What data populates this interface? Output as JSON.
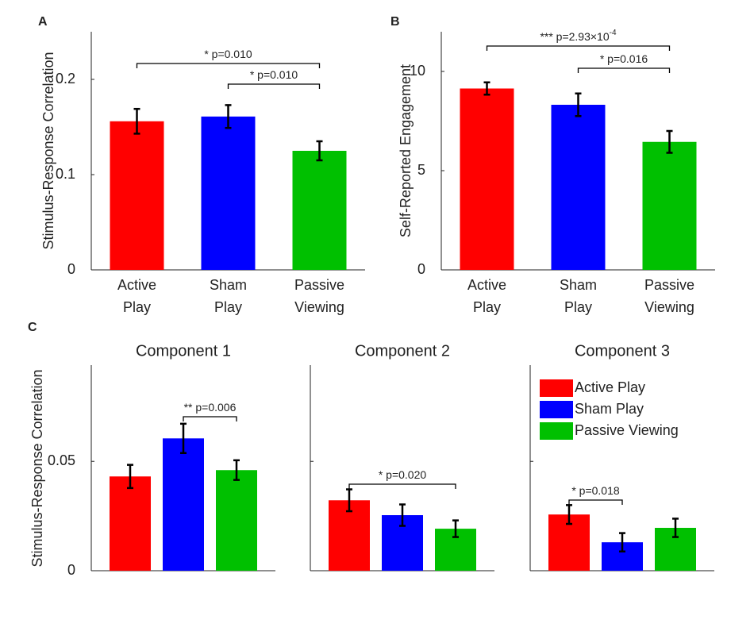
{
  "chart_data": [
    {
      "type": "bar",
      "panel_label": "A",
      "ylabel": "Stimulus-Response Correlation",
      "categories": [
        [
          "Active",
          "Play"
        ],
        [
          "Sham",
          "Play"
        ],
        [
          "Passive",
          "Viewing"
        ]
      ],
      "values": [
        0.156,
        0.161,
        0.125
      ],
      "errors": [
        0.013,
        0.012,
        0.01
      ],
      "colors": [
        "#ff0000",
        "#0000ff",
        "#00c000"
      ],
      "ylim": [
        0,
        0.25
      ],
      "yticks": [
        0,
        0.1,
        0.2
      ],
      "annotations": [
        {
          "label": "* p=0.010"
        },
        {
          "label": "* p=0.010"
        }
      ]
    },
    {
      "type": "bar",
      "panel_label": "B",
      "ylabel": "Self-Reported Engagement",
      "categories": [
        [
          "Active",
          "Play"
        ],
        [
          "Sham",
          "Play"
        ],
        [
          "Passive",
          "Viewing"
        ]
      ],
      "values": [
        9.14,
        8.32,
        6.45
      ],
      "errors": [
        0.31,
        0.57,
        0.55
      ],
      "colors": [
        "#ff0000",
        "#0000ff",
        "#00c000"
      ],
      "ylim": [
        0,
        12
      ],
      "yticks": [
        0,
        5,
        10
      ],
      "annotations": [
        {
          "label": "*** p=2.93×10",
          "superscript": "-4"
        },
        {
          "label": "* p=0.016"
        }
      ]
    },
    {
      "type": "grouped_bar",
      "panel_label": "C",
      "ylabel": "Stimulus-Response Correlation",
      "categories": [
        "Component 1",
        "Component 2",
        "Component 3"
      ],
      "series": [
        {
          "name": "Active Play",
          "color": "#ff0000",
          "values": [
            0.0431,
            0.0322,
            0.0257
          ],
          "errors": [
            0.0053,
            0.005,
            0.0043
          ]
        },
        {
          "name": "Sham Play",
          "color": "#0000ff",
          "values": [
            0.0605,
            0.0254,
            0.013
          ],
          "errors": [
            0.0067,
            0.0049,
            0.0042
          ]
        },
        {
          "name": "Passive Viewing",
          "color": "#00c000",
          "values": [
            0.046,
            0.0192,
            0.0196
          ],
          "errors": [
            0.0045,
            0.0038,
            0.0042
          ]
        }
      ],
      "ylim": [
        0,
        0.094
      ],
      "yticks": [
        0,
        0.05
      ],
      "legend": "upper right",
      "annotations": [
        {
          "label": "** p=0.006"
        },
        {
          "label": "* p=0.020"
        },
        {
          "label": "* p=0.018"
        }
      ]
    }
  ]
}
